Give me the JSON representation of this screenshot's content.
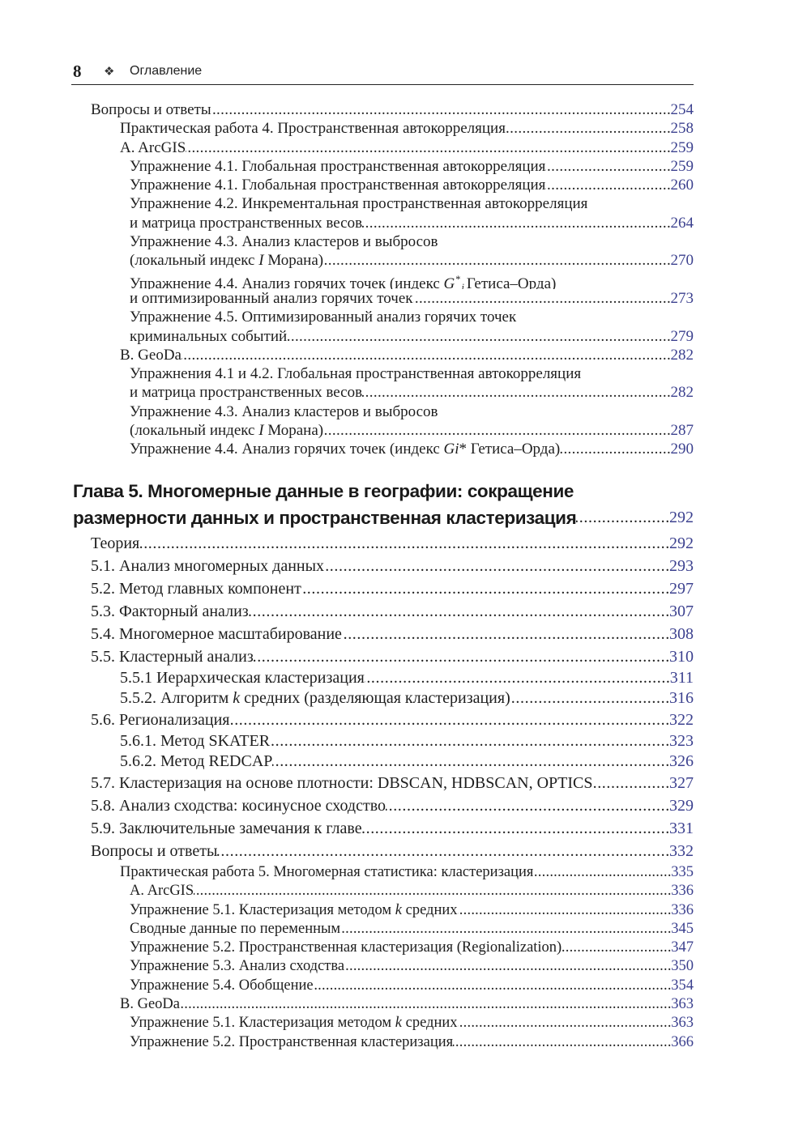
{
  "header": {
    "page_number": "8",
    "ornament_icon": "four-diamond-ornament",
    "title": "Оглавление"
  },
  "colors": {
    "page_number_color": "#3c418f",
    "text": "#1e1e1e"
  },
  "sectionA": [
    {
      "level": 1,
      "lines": [
        "Вопросы и ответы"
      ],
      "page": "254"
    },
    {
      "level": 2,
      "lines": [
        "Практическая работа 4. Пространственная автокорреляция"
      ],
      "page": "258"
    },
    {
      "level": 2,
      "lines": [
        "A. ArcGIS"
      ],
      "page": "259"
    },
    {
      "level": 3,
      "lines": [
        "Упражнение 4.1. Глобальная пространственная автокорреляция"
      ],
      "page": "259"
    },
    {
      "level": 3,
      "lines": [
        "Упражнение 4.1. Глобальная пространственная автокорреляция"
      ],
      "page": "260"
    },
    {
      "level": 3,
      "lines": [
        "Упражнение 4.2. Инкрементальная пространственная автокорреляция",
        "и матрица пространственных весов"
      ],
      "page": "264"
    },
    {
      "level": 3,
      "lines": [
        "Упражнение 4.3. Анализ кластеров и выбросов",
        [
          {
            "text": "(локальный индекс "
          },
          {
            "text": "I",
            "style": "italic"
          },
          {
            "text": " Морана)"
          }
        ]
      ],
      "page": "270"
    },
    {
      "level": 3,
      "lines": [
        [
          {
            "text": "Упражнение 4.4. Анализ горячих точек (индекс "
          },
          {
            "text": "G",
            "style": "italic"
          },
          {
            "text": "*",
            "style": "sup"
          },
          {
            "text": "i",
            "style": "sub"
          },
          {
            "text": "Гетиса–Орда)"
          }
        ],
        "и оптимизированный анализ горячих точек"
      ],
      "page": "273"
    },
    {
      "level": 3,
      "lines": [
        "Упражнение 4.5. Оптимизированный анализ горячих точек",
        "криминальных событий"
      ],
      "page": "279"
    },
    {
      "level": 2,
      "lines": [
        "B. GeoDa"
      ],
      "page": "282"
    },
    {
      "level": 3,
      "lines": [
        "Упражнения 4.1 и 4.2. Глобальная пространственная автокорреляция",
        "и матрица пространственных весов"
      ],
      "page": "282"
    },
    {
      "level": 3,
      "lines": [
        "Упражнение 4.3. Анализ кластеров и выбросов",
        [
          {
            "text": "(локальный индекс "
          },
          {
            "text": "I",
            "style": "italic"
          },
          {
            "text": " Морана)"
          }
        ]
      ],
      "page": "287"
    },
    {
      "level": 3,
      "lines": [
        [
          {
            "text": "Упражнение 4.4. Анализ горячих точек (индекс "
          },
          {
            "text": "Gi",
            "style": "italic"
          },
          {
            "text": "* Гетиса–Орда)"
          }
        ]
      ],
      "page": "290"
    }
  ],
  "chapter": {
    "lines": [
      "Глава 5. Многомерные данные в географии: сокращение",
      "размерности данных и пространственная кластеризация"
    ],
    "page": "292"
  },
  "sectionB": [
    {
      "level": 1,
      "lines": [
        "Теория"
      ],
      "page": "292"
    },
    {
      "level": 1,
      "lines": [
        "5.1. Анализ многомерных данных"
      ],
      "page": "293"
    },
    {
      "level": 1,
      "lines": [
        "5.2. Метод главных компонент"
      ],
      "page": "297"
    },
    {
      "level": 1,
      "lines": [
        "5.3. Факторный анализ"
      ],
      "page": "307"
    },
    {
      "level": 1,
      "lines": [
        "5.4. Многомерное масштабирование"
      ],
      "page": "308"
    },
    {
      "level": 1,
      "lines": [
        "5.5. Кластерный анализ"
      ],
      "page": "310"
    },
    {
      "level": 2,
      "lines": [
        "5.5.1 Иерархическая кластеризация"
      ],
      "page": "311"
    },
    {
      "level": 2,
      "lines": [
        [
          {
            "text": "5.5.2. Алгоритм "
          },
          {
            "text": "k",
            "style": "italic"
          },
          {
            "text": " средних (разделяющая кластеризация)"
          }
        ]
      ],
      "page": "316"
    },
    {
      "level": 1,
      "lines": [
        "5.6. Регионализация"
      ],
      "page": "322"
    },
    {
      "level": 2,
      "lines": [
        "5.6.1. Метод SKATER"
      ],
      "page": "323"
    },
    {
      "level": 2,
      "lines": [
        "5.6.2. Метод REDCAP"
      ],
      "page": "326"
    },
    {
      "level": 1,
      "lines": [
        "5.7. Кластеризация на основе плотности: DBSCAN, HDBSCAN, OPTICS"
      ],
      "page": "327"
    },
    {
      "level": 1,
      "lines": [
        "5.8. Анализ сходства: косинусное сходство"
      ],
      "page": "329"
    },
    {
      "level": 1,
      "lines": [
        "5.9. Заключительные замечания к главе"
      ],
      "page": "331"
    },
    {
      "level": 1,
      "lines": [
        "Вопросы и ответы"
      ],
      "page": "332"
    }
  ],
  "sectionC": [
    {
      "level": 2,
      "lines": [
        "Практическая работа 5. Многомерная статистика: кластеризация"
      ],
      "page": "335"
    },
    {
      "level": 3,
      "lines": [
        "A. ArcGIS"
      ],
      "page": "336"
    },
    {
      "level": 3,
      "lines": [
        [
          {
            "text": "Упражнение 5.1. Кластеризация методом "
          },
          {
            "text": "k",
            "style": "italic"
          },
          {
            "text": " средних"
          }
        ]
      ],
      "page": "336"
    },
    {
      "level": 3,
      "lines": [
        "Сводные данные по переменным"
      ],
      "page": "345"
    },
    {
      "level": 3,
      "lines": [
        "Упражнение 5.2. Пространственная кластеризация (Regionalization)"
      ],
      "page": "347"
    },
    {
      "level": 3,
      "lines": [
        "Упражнение 5.3. Анализ сходства"
      ],
      "page": "350"
    },
    {
      "level": 3,
      "lines": [
        "Упражнение 5.4. Обобщение"
      ],
      "page": "354"
    },
    {
      "level": 2,
      "lines": [
        "B. GeoDa"
      ],
      "page": "363"
    },
    {
      "level": 3,
      "lines": [
        [
          {
            "text": "Упражнение 5.1. Кластеризация методом "
          },
          {
            "text": "k",
            "style": "italic"
          },
          {
            "text": " средних"
          }
        ]
      ],
      "page": "363"
    },
    {
      "level": 3,
      "lines": [
        "Упражнение 5.2. Пространственная кластеризация"
      ],
      "page": "366"
    }
  ]
}
